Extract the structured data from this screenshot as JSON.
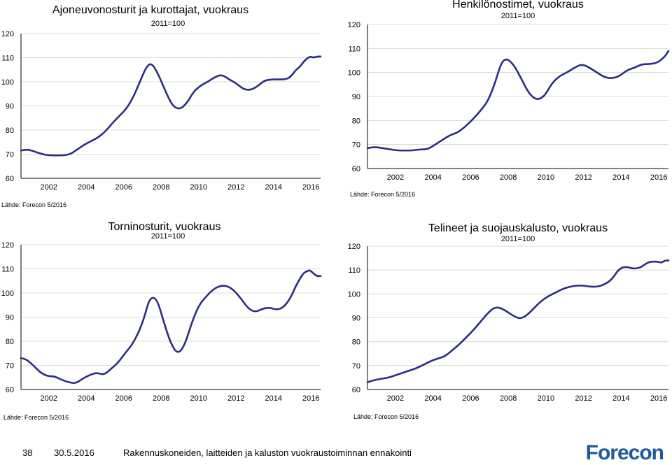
{
  "colors": {
    "line": "#2B2E83",
    "grid": "#d0d0d0",
    "axis": "#000000",
    "logo": "#1f5a9e"
  },
  "panels": [
    {
      "title": "Ajoneuvonosturit ja kurottajat, vuokraus",
      "subtitle": "2011=100",
      "source": "Lähde: Forecon 5/2016"
    },
    {
      "title": "Henkilönostimet, vuokraus",
      "subtitle": "2011=100",
      "source": "Lähde: Forecon 5/2016"
    },
    {
      "title": "Torninosturit, vuokraus",
      "subtitle": "2011=100",
      "source": "Lähde: Forecon 5/2016"
    },
    {
      "title": "Telineet ja suojauskalusto, vuokraus",
      "subtitle": "2011=100",
      "source": "Lähde: Forecon 5/2016"
    }
  ],
  "chart_data": [
    {
      "type": "line",
      "title": "Ajoneuvonosturit ja kurottajat, vuokraus",
      "subtitle": "2011=100",
      "xlim": [
        2001.0,
        2017.0
      ],
      "ylim": [
        60,
        120
      ],
      "yticks": [
        60,
        70,
        80,
        90,
        100,
        110,
        120
      ],
      "xticks": [
        2002,
        2004,
        2006,
        2008,
        2010,
        2012,
        2014,
        2016
      ],
      "grid": true,
      "x": [
        2001.0,
        2001.4,
        2001.8,
        2002.2,
        2002.6,
        2003.0,
        2003.4,
        2003.8,
        2004.2,
        2004.6,
        2005.0,
        2005.4,
        2005.8,
        2006.2,
        2006.6,
        2007.0,
        2007.4,
        2007.8,
        2008.1,
        2008.4,
        2008.8,
        2009.2,
        2009.6,
        2010.0,
        2010.4,
        2010.8,
        2011.2,
        2011.6,
        2012.0,
        2012.4,
        2012.8,
        2013.2,
        2013.6,
        2014.0,
        2014.4,
        2014.8,
        2015.2,
        2015.6,
        2016.0,
        2016.3,
        2016.6,
        2016.8,
        2017.0
      ],
      "y": [
        71.5,
        72,
        71,
        70,
        69.5,
        69.5,
        69.5,
        70,
        72,
        74,
        75.5,
        77,
        79.5,
        83,
        86,
        89,
        94,
        101,
        106,
        108,
        103,
        96,
        90,
        88.5,
        91,
        96,
        98.5,
        100,
        102,
        103,
        101,
        99.5,
        97,
        96.5,
        98,
        100.5,
        101,
        101,
        101,
        102,
        105,
        106,
        108
      ],
      "x2": [
        2016.8,
        2017.0,
        2017.2,
        2017.4,
        2017.6,
        2017.8,
        2018.0
      ],
      "y2": [
        106,
        108,
        109.5,
        110.5,
        110,
        110.5,
        110.5
      ]
    },
    {
      "type": "line",
      "title": "Henkilönostimet, vuokraus",
      "subtitle": "2011=100",
      "xlim": [
        2001.0,
        2017.0
      ],
      "ylim": [
        60,
        120
      ],
      "yticks": [
        60,
        70,
        80,
        90,
        100,
        110,
        120
      ],
      "xticks": [
        2002,
        2004,
        2006,
        2008,
        2010,
        2012,
        2014,
        2016
      ],
      "grid": true,
      "x": [
        2001.0,
        2001.4,
        2001.8,
        2002.2,
        2002.6,
        2003.0,
        2003.4,
        2003.8,
        2004.2,
        2004.6,
        2005.0,
        2005.4,
        2005.8,
        2006.2,
        2006.6,
        2007.0,
        2007.4,
        2007.8,
        2008.1,
        2008.4,
        2008.8,
        2009.2,
        2009.6,
        2010.0,
        2010.4,
        2010.8,
        2011.2,
        2011.6,
        2012.0,
        2012.4,
        2012.8,
        2013.2,
        2013.6,
        2014.0,
        2014.4,
        2014.8,
        2015.2,
        2015.6,
        2016.0,
        2016.4,
        2016.8,
        2017.0
      ],
      "y": [
        68.5,
        69,
        68.5,
        68,
        67.5,
        67.5,
        67.5,
        68,
        68,
        70,
        72,
        74,
        75,
        77.5,
        80.5,
        84,
        88,
        96,
        104,
        106,
        103,
        97,
        91,
        88.5,
        90,
        95.5,
        98.5,
        100,
        102,
        103.5,
        102,
        100,
        98,
        97.5,
        98.5,
        101,
        102,
        103.5,
        103.5,
        104,
        106.5,
        109
      ]
    },
    {
      "type": "line",
      "title": "Torninosturit, vuokraus",
      "subtitle": "2011=100",
      "xlim": [
        2001.0,
        2017.0
      ],
      "ylim": [
        60,
        120
      ],
      "yticks": [
        60,
        70,
        80,
        90,
        100,
        110,
        120
      ],
      "xticks": [
        2002,
        2004,
        2006,
        2008,
        2010,
        2012,
        2014,
        2016
      ],
      "grid": true,
      "x": [
        2001.0,
        2001.3,
        2001.7,
        2002.1,
        2002.5,
        2002.9,
        2003.3,
        2003.7,
        2004.1,
        2004.5,
        2004.9,
        2005.3,
        2005.7,
        2006.1,
        2006.5,
        2006.9,
        2007.3,
        2007.7,
        2008.0,
        2008.3,
        2008.7,
        2009.1,
        2009.5,
        2009.9,
        2010.3,
        2010.7,
        2011.1,
        2011.5,
        2011.9,
        2012.3,
        2012.7,
        2013.1,
        2013.5,
        2013.9,
        2014.3,
        2014.7,
        2015.1,
        2015.5,
        2015.9,
        2016.3,
        2016.6,
        2016.8,
        2017.0
      ],
      "y": [
        73,
        72.5,
        70,
        67,
        65.5,
        65.5,
        64,
        63,
        62.5,
        64.5,
        66,
        67,
        66,
        68.5,
        71,
        75,
        78.5,
        84,
        90,
        98,
        98,
        88,
        79,
        74.5,
        78.5,
        88,
        95,
        98.5,
        101.5,
        103,
        103,
        101,
        97.5,
        93.5,
        92,
        93.5,
        94,
        93,
        94,
        98,
        103,
        105.5,
        108
      ],
      "x2": [
        2016.8,
        2017.0,
        2017.2,
        2017.4,
        2017.6,
        2017.8,
        2018.0
      ],
      "y2": [
        105.5,
        108,
        109,
        109.5,
        108,
        107,
        107
      ]
    },
    {
      "type": "line",
      "title": "Telineet ja suojauskalusto, vuokraus",
      "subtitle": "2011=100",
      "xlim": [
        2001.0,
        2017.0
      ],
      "ylim": [
        60,
        120
      ],
      "yticks": [
        60,
        70,
        80,
        90,
        100,
        110,
        120
      ],
      "xticks": [
        2002,
        2004,
        2006,
        2008,
        2010,
        2012,
        2014,
        2016
      ],
      "grid": true,
      "x": [
        2001.0,
        2001.4,
        2001.8,
        2002.2,
        2002.6,
        2003.0,
        2003.4,
        2003.8,
        2004.2,
        2004.6,
        2005.0,
        2005.4,
        2005.8,
        2006.2,
        2006.6,
        2007.0,
        2007.4,
        2007.8,
        2008.1,
        2008.4,
        2008.8,
        2009.2,
        2009.6,
        2010.0,
        2010.4,
        2010.8,
        2011.2,
        2011.6,
        2012.0,
        2012.4,
        2012.8,
        2013.2,
        2013.6,
        2014.0,
        2014.4,
        2014.8,
        2015.2,
        2015.6,
        2016.0,
        2016.4,
        2016.8,
        2017.0
      ],
      "y": [
        63,
        64,
        64.5,
        65,
        66,
        67,
        68,
        69,
        70.5,
        72,
        73,
        74,
        76.5,
        79,
        82,
        85,
        88.5,
        92,
        94,
        94.5,
        93,
        91,
        89.5,
        91,
        94,
        97,
        99,
        100.5,
        102,
        103,
        103.5,
        103.5,
        103,
        103,
        104,
        106,
        110.5,
        111.5,
        110.5,
        111,
        113,
        113.5
      ],
      "x2": [
        2016.6,
        2016.8,
        2017.0,
        2017.2,
        2017.4,
        2017.6,
        2017.8,
        2018.0
      ],
      "y2": [
        112,
        113,
        113.5,
        113.5,
        113.5,
        113,
        114,
        114
      ]
    }
  ],
  "footer": {
    "page": "38",
    "date": "30.5.2016",
    "text": "Rakennuskoneiden, laitteiden ja kaluston vuokraustoiminnan ennakointi",
    "logo": "Forecon"
  }
}
